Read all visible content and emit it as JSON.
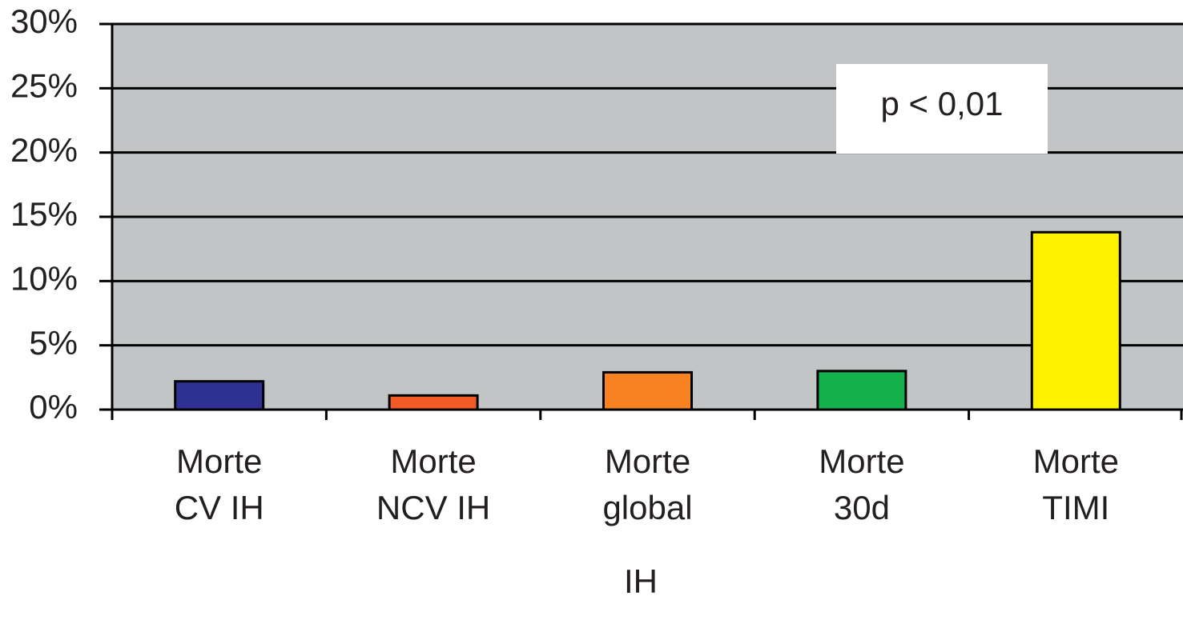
{
  "chart_data": {
    "type": "bar",
    "categories": [
      [
        "Morte",
        "CV IH"
      ],
      [
        "Morte",
        "NCV IH"
      ],
      [
        "Morte",
        "global"
      ],
      [
        "Morte",
        "30d"
      ],
      [
        "Morte",
        "TIMI"
      ]
    ],
    "values": [
      2.2,
      1.1,
      2.9,
      3.0,
      13.8
    ],
    "colors": [
      "#2e3192",
      "#f15a24",
      "#f7821f",
      "#13b04b",
      "#fff200"
    ],
    "x_label": "IH",
    "annotation": "p < 0,01",
    "ylim": [
      0,
      30
    ],
    "yticks": [
      {
        "value": 0,
        "label": "0%"
      },
      {
        "value": 5,
        "label": "5%"
      },
      {
        "value": 10,
        "label": "10%"
      },
      {
        "value": 15,
        "label": "15%"
      },
      {
        "value": 20,
        "label": "20%"
      },
      {
        "value": 25,
        "label": "25%"
      },
      {
        "value": 30,
        "label": "30%"
      }
    ],
    "grid": true
  }
}
